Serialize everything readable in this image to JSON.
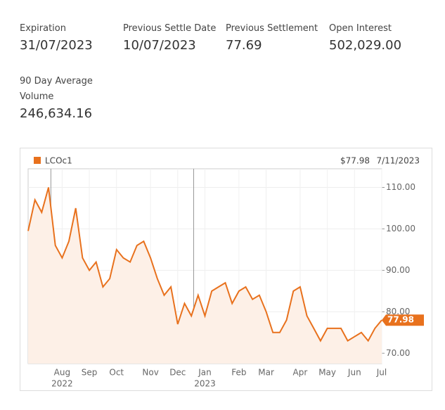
{
  "stats": [
    {
      "label": "Expiration",
      "value": "31/07/2023"
    },
    {
      "label": "Previous Settle Date",
      "value": "10/07/2023"
    },
    {
      "label": "Previous Settlement",
      "value": "77.69"
    },
    {
      "label": "Open Interest",
      "value": "502,029.00"
    },
    {
      "label": "90 Day Average Volume",
      "value": "246,634.16"
    }
  ],
  "chart_data": {
    "type": "line",
    "header_price": "$77.98",
    "header_date": "7/11/2023",
    "categories": [
      null,
      null,
      null,
      null,
      null,
      "Aug",
      null,
      null,
      null,
      "Sep",
      null,
      null,
      null,
      "Oct",
      null,
      null,
      null,
      null,
      "Nov",
      null,
      null,
      null,
      "Dec",
      null,
      null,
      null,
      "Jan",
      null,
      null,
      null,
      null,
      "Feb",
      null,
      null,
      null,
      "Mar",
      null,
      null,
      null,
      null,
      "Apr",
      null,
      null,
      null,
      "May",
      null,
      null,
      null,
      "Jun",
      null,
      null,
      null,
      "Jul"
    ],
    "category_years": [
      null,
      null,
      null,
      null,
      null,
      "2022",
      null,
      null,
      null,
      null,
      null,
      null,
      null,
      null,
      null,
      null,
      null,
      null,
      null,
      null,
      null,
      null,
      null,
      null,
      null,
      null,
      "2023",
      null,
      null,
      null,
      null,
      null,
      null,
      null,
      null,
      null,
      null,
      null,
      null,
      null,
      null,
      null,
      null,
      null,
      null,
      null,
      null,
      null,
      null,
      null,
      null,
      null,
      null
    ],
    "series": [
      {
        "name": "LCOc1",
        "color": "#e8711d",
        "values": [
          99.5,
          107,
          104,
          110,
          96,
          93,
          97,
          105,
          93,
          90,
          92,
          86,
          88,
          95,
          93,
          92,
          96,
          97,
          93,
          88,
          84,
          86,
          77,
          82,
          79,
          84,
          79,
          85,
          86,
          87,
          82,
          85,
          86,
          83,
          84,
          80,
          75,
          75,
          78,
          85,
          86,
          79,
          76,
          73,
          76,
          76,
          76,
          73,
          74,
          75,
          73,
          76,
          77.98
        ]
      }
    ],
    "ylim": [
      67.5,
      114.5
    ],
    "yticks": [
      {
        "value": 70,
        "label": "70.00"
      },
      {
        "value": 80,
        "label": "80.00"
      },
      {
        "value": 90,
        "label": "90.00"
      },
      {
        "value": 100,
        "label": "100.00"
      },
      {
        "value": 110,
        "label": "110.00"
      }
    ],
    "grid": true
  }
}
